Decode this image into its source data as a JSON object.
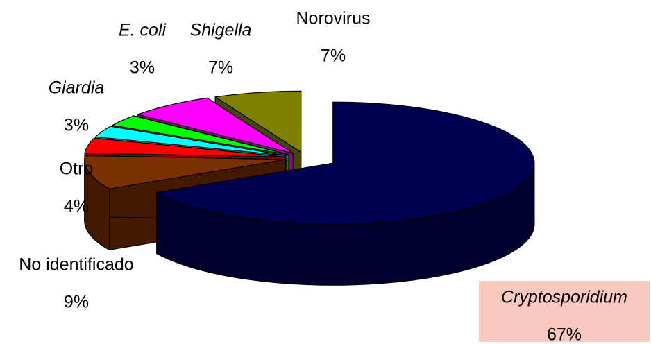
{
  "chart_data": {
    "type": "pie",
    "categories": [
      "Cryptosporidium",
      "No identificado",
      "Otro",
      "Giardia",
      "E. coli",
      "Shigella",
      "Norovirus"
    ],
    "values": [
      67,
      9,
      4,
      3,
      3,
      7,
      7
    ],
    "value_labels": [
      "67%",
      "9%",
      "4%",
      "3%",
      "3%",
      "7%",
      "7%"
    ],
    "colors": [
      "#000050",
      "#7a3000",
      "#ff0000",
      "#00ffff",
      "#00ff00",
      "#ff00ff",
      "#808000"
    ],
    "label_italic": [
      true,
      false,
      false,
      true,
      true,
      true,
      false
    ],
    "three_d": true,
    "exploded": true
  }
}
